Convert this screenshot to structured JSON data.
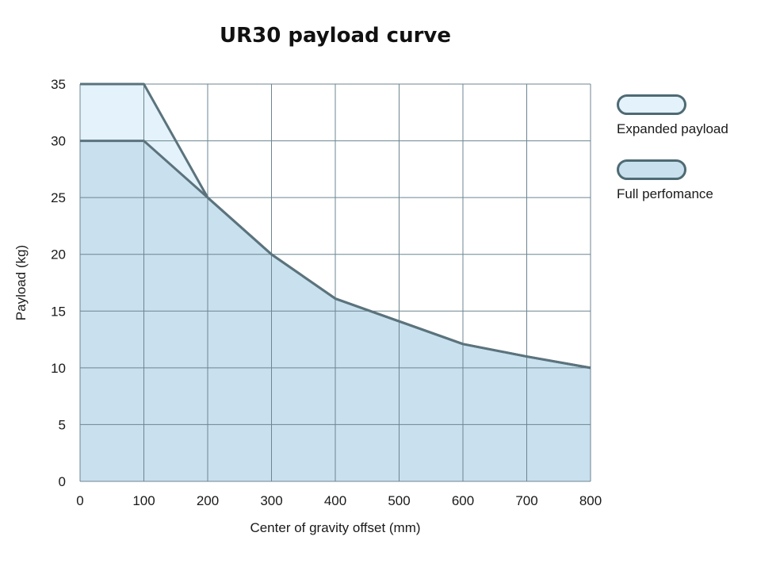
{
  "chart_data": {
    "type": "area",
    "title": "UR30 payload curve",
    "xlabel": "Center of gravity offset (mm)",
    "ylabel": "Payload (kg)",
    "xlim": [
      0,
      800
    ],
    "ylim": [
      0,
      35
    ],
    "xticks": [
      0,
      100,
      200,
      300,
      400,
      500,
      600,
      700,
      800
    ],
    "yticks": [
      0,
      5,
      10,
      15,
      20,
      25,
      30,
      35
    ],
    "grid": true,
    "legend_position": "right",
    "series": [
      {
        "name": "Expanded payload",
        "fill": "#e3f2fb",
        "x": [
          0,
          100,
          200,
          300,
          400,
          500,
          600,
          700,
          800
        ],
        "y": [
          35,
          35,
          25,
          20,
          16.1,
          14.1,
          12.1,
          11,
          10
        ]
      },
      {
        "name": "Full perfomance",
        "fill": "#c9e0ef",
        "x": [
          0,
          100,
          200,
          300,
          400,
          500,
          600,
          700,
          800
        ],
        "y": [
          30,
          30,
          25,
          20,
          16.1,
          14.1,
          12.1,
          11,
          10
        ]
      }
    ],
    "line_color": "#5b737c",
    "grid_color": "#6c8690"
  }
}
